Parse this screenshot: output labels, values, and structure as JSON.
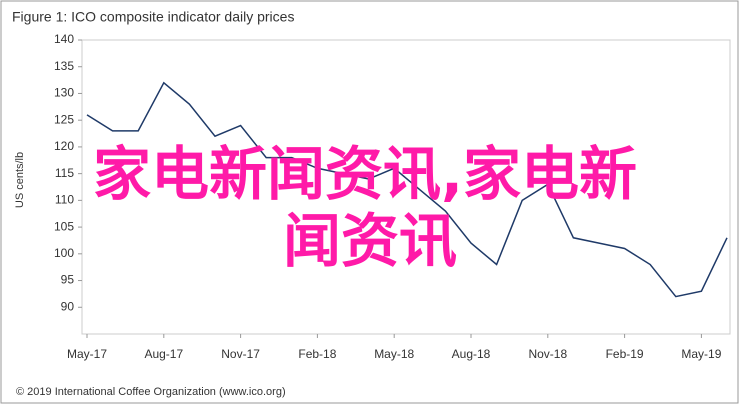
{
  "chart_data": {
    "type": "line",
    "title": "Figure 1: ICO composite indicator daily prices",
    "y_label": "US cents/lb",
    "footer": "© 2019 International Coffee Organization (www.ico.org)",
    "overlay_text": [
      "家电新闻资讯,家电新",
      "闻资讯"
    ],
    "overlay_color": "#ff1aa8",
    "categories": [
      "May-17",
      null,
      null,
      "Aug-17",
      null,
      null,
      "Nov-17",
      null,
      null,
      "Feb-18",
      null,
      null,
      "May-18",
      null,
      null,
      "Aug-18",
      null,
      null,
      "Nov-18",
      null,
      null,
      "Feb-19",
      null,
      null,
      "May-19",
      null
    ],
    "series": [
      {
        "name": "ICO composite indicator",
        "color": "#1f3a68",
        "values": [
          126,
          123,
          123,
          132,
          128,
          122,
          124,
          118,
          118,
          116,
          115,
          114,
          116,
          112,
          108,
          102,
          98,
          110,
          113,
          103,
          102,
          101,
          98,
          92,
          93,
          103
        ]
      }
    ],
    "ylim": [
      85,
      140
    ],
    "yticks": [
      90,
      95,
      100,
      105,
      110,
      115,
      120,
      125,
      130,
      135,
      140
    ],
    "grid": false
  }
}
